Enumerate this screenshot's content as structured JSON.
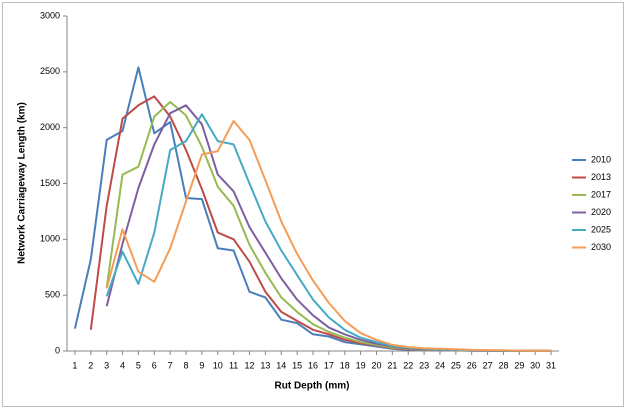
{
  "chart_data": {
    "type": "line",
    "x_label": "Rut Depth (mm)",
    "y_label": "Network Carriageway Length (km)",
    "x": [
      1,
      2,
      3,
      4,
      5,
      6,
      7,
      8,
      9,
      10,
      11,
      12,
      13,
      14,
      15,
      16,
      17,
      18,
      19,
      20,
      21,
      22,
      23,
      24,
      25,
      26,
      27,
      28,
      29,
      30,
      31
    ],
    "xlim": [
      0.5,
      31.5
    ],
    "xticks": [
      1,
      2,
      3,
      4,
      5,
      6,
      7,
      8,
      9,
      10,
      11,
      12,
      13,
      14,
      15,
      16,
      17,
      18,
      19,
      20,
      21,
      22,
      23,
      24,
      25,
      26,
      27,
      28,
      29,
      30,
      31
    ],
    "ylim": [
      0,
      3000
    ],
    "yticks": [
      0,
      500,
      1000,
      1500,
      2000,
      2500,
      3000
    ],
    "grid": false,
    "legend": "right",
    "series": [
      {
        "name": "2010",
        "color": "#4a7ebb",
        "values": [
          200,
          820,
          1890,
          1970,
          2540,
          1950,
          2050,
          1370,
          1360,
          920,
          900,
          530,
          480,
          280,
          250,
          150,
          130,
          80,
          60,
          40,
          20,
          10,
          10,
          5,
          5,
          3,
          3,
          2,
          2,
          1,
          1
        ]
      },
      {
        "name": "2013",
        "color": "#be4b48",
        "values": [
          null,
          190,
          1300,
          2080,
          2200,
          2280,
          2100,
          1800,
          1450,
          1060,
          1000,
          800,
          530,
          350,
          270,
          190,
          150,
          100,
          70,
          50,
          25,
          15,
          10,
          8,
          6,
          4,
          3,
          2,
          2,
          1,
          1
        ]
      },
      {
        "name": "2017",
        "color": "#98b954",
        "values": [
          null,
          null,
          570,
          1580,
          1650,
          2100,
          2230,
          2110,
          1830,
          1470,
          1300,
          950,
          700,
          480,
          350,
          240,
          170,
          120,
          80,
          55,
          30,
          20,
          12,
          9,
          7,
          5,
          4,
          3,
          2,
          2,
          1
        ]
      },
      {
        "name": "2020",
        "color": "#7d60a0",
        "values": [
          null,
          null,
          400,
          960,
          1460,
          1850,
          2130,
          2200,
          2030,
          1580,
          1430,
          1110,
          880,
          650,
          460,
          320,
          210,
          150,
          100,
          65,
          40,
          25,
          15,
          11,
          8,
          6,
          4,
          3,
          2,
          2,
          1
        ]
      },
      {
        "name": "2025",
        "color": "#46aac5",
        "values": [
          null,
          null,
          490,
          890,
          600,
          1060,
          1800,
          1880,
          2120,
          1880,
          1850,
          1500,
          1160,
          900,
          680,
          460,
          300,
          190,
          120,
          80,
          45,
          30,
          20,
          14,
          10,
          7,
          5,
          4,
          3,
          2,
          2
        ]
      },
      {
        "name": "2030",
        "color": "#f59d56",
        "values": [
          null,
          null,
          560,
          1090,
          710,
          620,
          920,
          1340,
          1760,
          1790,
          2060,
          1890,
          1530,
          1160,
          870,
          630,
          430,
          270,
          160,
          100,
          55,
          35,
          25,
          20,
          15,
          10,
          8,
          6,
          4,
          3,
          2
        ]
      }
    ]
  }
}
